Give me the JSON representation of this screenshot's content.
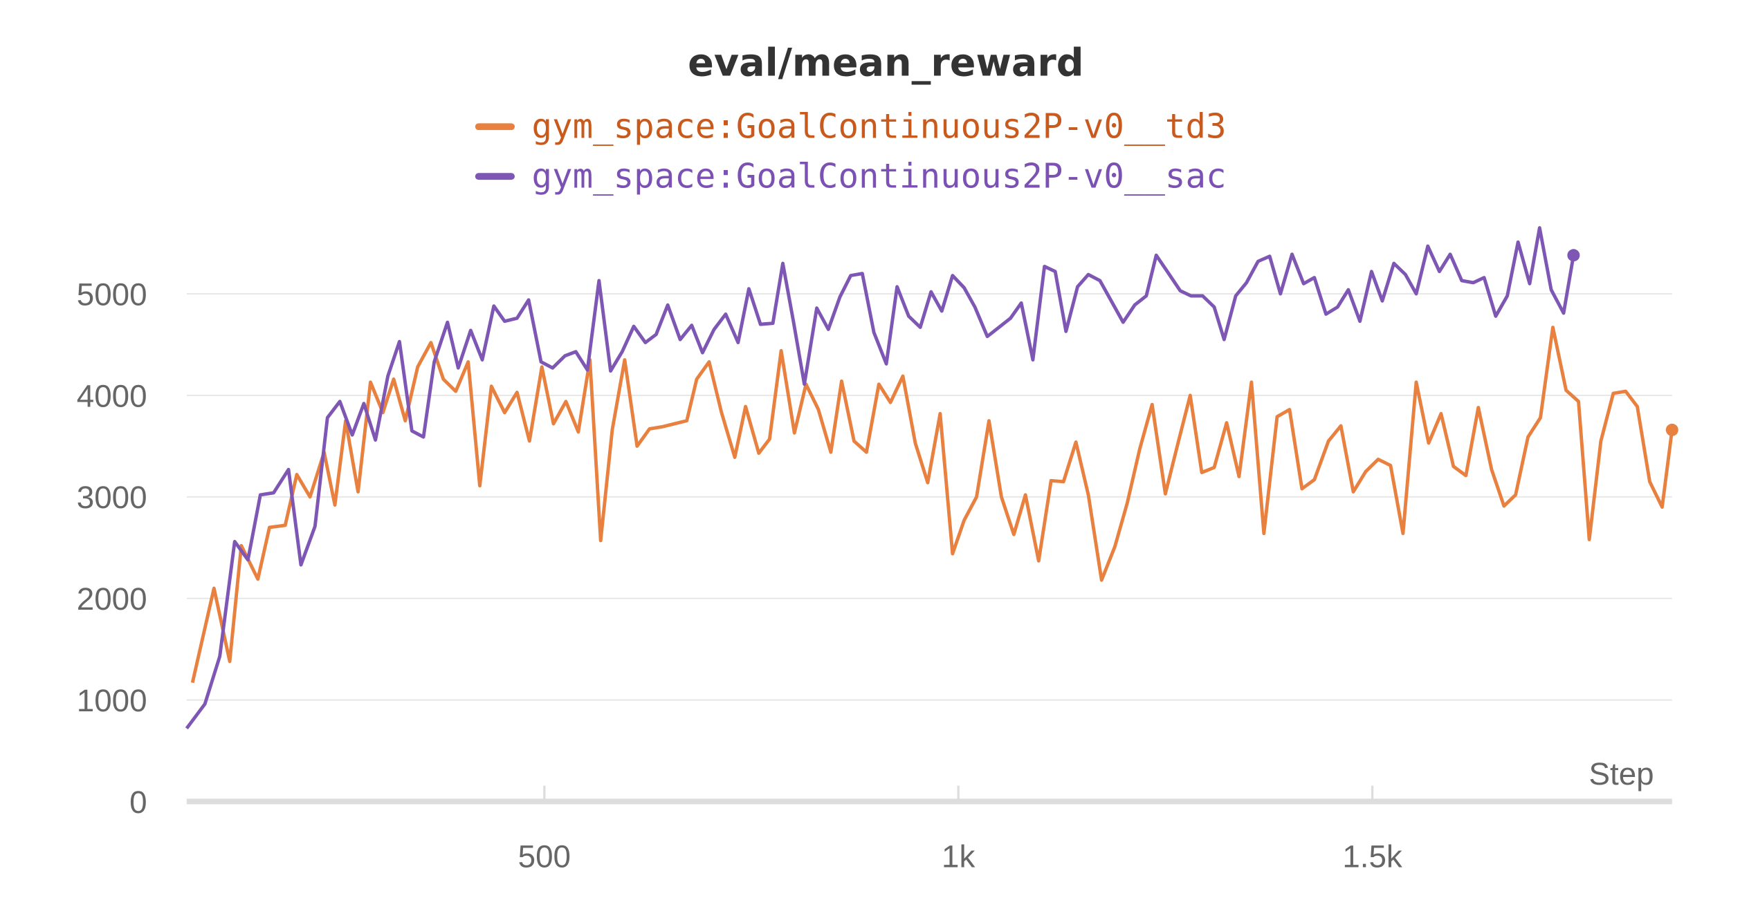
{
  "chart_data": {
    "type": "line",
    "title": "eval/mean_reward",
    "x_label": "Step",
    "xlim": [
      68,
      1862
    ],
    "ylim": [
      0,
      5700
    ],
    "xticks": [
      500,
      {
        "value": 1000,
        "label": "1k"
      },
      {
        "value": 1500,
        "label": "1.5k"
      }
    ],
    "yticks": [
      0,
      1000,
      2000,
      3000,
      4000,
      5000
    ],
    "grid": true,
    "series": [
      {
        "name": "gym_space:GoalContinuous2P-v0__td3",
        "color": "#e8803f",
        "x": [
          75,
          101,
          120,
          134,
          154,
          168,
          187,
          201,
          217,
          234,
          247,
          260,
          275,
          290,
          305,
          318,
          332,
          347,
          363,
          378,
          393,
          408,
          422,
          436,
          452,
          467,
          482,
          497,
          511,
          526,
          541,
          555,
          568,
          582,
          597,
          612,
          627,
          642,
          657,
          672,
          684,
          699,
          714,
          730,
          743,
          759,
          772,
          786,
          802,
          816,
          831,
          846,
          859,
          874,
          889,
          904,
          918,
          933,
          948,
          963,
          978,
          993,
          1007,
          1022,
          1037,
          1052,
          1067,
          1081,
          1097,
          1112,
          1127,
          1142,
          1157,
          1173,
          1189,
          1204,
          1219,
          1234,
          1250,
          1265,
          1280,
          1294,
          1309,
          1324,
          1339,
          1354,
          1369,
          1385,
          1400,
          1415,
          1430,
          1447,
          1462,
          1477,
          1492,
          1507,
          1522,
          1537,
          1553,
          1568,
          1583,
          1598,
          1613,
          1628,
          1644,
          1659,
          1673,
          1688,
          1703,
          1718,
          1734,
          1749,
          1762,
          1776,
          1791,
          1806,
          1820,
          1835,
          1850,
          1862
        ],
        "values": [
          1170,
          2100,
          1380,
          2520,
          2190,
          2700,
          2720,
          3220,
          3000,
          3440,
          2920,
          3750,
          3050,
          4130,
          3830,
          4160,
          3750,
          4280,
          4520,
          4160,
          4040,
          4330,
          3110,
          4090,
          3830,
          4030,
          3550,
          4280,
          3720,
          3940,
          3640,
          4350,
          2570,
          3660,
          4350,
          3500,
          3670,
          3690,
          3720,
          3750,
          4160,
          4330,
          3830,
          3390,
          3890,
          3430,
          3570,
          4440,
          3630,
          4110,
          3860,
          3440,
          4140,
          3550,
          3440,
          4110,
          3930,
          4190,
          3530,
          3140,
          3820,
          2440,
          2770,
          3000,
          3750,
          3000,
          2630,
          3020,
          2370,
          3160,
          3150,
          3540,
          3020,
          2180,
          2510,
          2940,
          3470,
          3910,
          3030,
          3520,
          4000,
          3240,
          3290,
          3730,
          3200,
          4130,
          2640,
          3790,
          3860,
          3080,
          3170,
          3550,
          3700,
          3050,
          3250,
          3370,
          3310,
          2640,
          4130,
          3530,
          3820,
          3300,
          3210,
          3880,
          3270,
          2910,
          3020,
          3590,
          3780,
          4670,
          4050,
          3940,
          2580,
          3550,
          4020,
          4040,
          3890,
          3150,
          2900,
          3660
        ]
      },
      {
        "name": "gym_space:GoalContinuous2P-v0__sac",
        "color": "#7e57b4",
        "x": [
          68,
          90,
          108,
          126,
          142,
          157,
          173,
          191,
          206,
          223,
          238,
          253,
          268,
          282,
          296,
          311,
          325,
          340,
          354,
          367,
          383,
          396,
          411,
          425,
          439,
          452,
          467,
          481,
          496,
          510,
          525,
          538,
          552,
          566,
          580,
          594,
          608,
          622,
          635,
          649,
          664,
          678,
          691,
          705,
          719,
          734,
          747,
          761,
          776,
          788,
          801,
          814,
          829,
          843,
          857,
          870,
          884,
          898,
          913,
          926,
          940,
          954,
          967,
          980,
          993,
          1007,
          1020,
          1035,
          1049,
          1063,
          1076,
          1090,
          1104,
          1117,
          1130,
          1144,
          1157,
          1171,
          1184,
          1199,
          1213,
          1227,
          1239,
          1254,
          1268,
          1281,
          1295,
          1309,
          1321,
          1335,
          1348,
          1362,
          1376,
          1389,
          1403,
          1417,
          1430,
          1444,
          1458,
          1471,
          1485,
          1499,
          1512,
          1526,
          1540,
          1553,
          1567,
          1581,
          1594,
          1608,
          1622,
          1635,
          1649,
          1663,
          1676,
          1690,
          1702,
          1716,
          1731,
          1743
        ],
        "values": [
          720,
          960,
          1430,
          2560,
          2380,
          3020,
          3040,
          3270,
          2330,
          2710,
          3780,
          3940,
          3610,
          3920,
          3560,
          4190,
          4530,
          3650,
          3590,
          4330,
          4720,
          4270,
          4640,
          4350,
          4880,
          4730,
          4760,
          4940,
          4330,
          4270,
          4390,
          4430,
          4250,
          5130,
          4240,
          4430,
          4680,
          4520,
          4600,
          4890,
          4550,
          4690,
          4420,
          4650,
          4800,
          4520,
          5050,
          4700,
          4710,
          5300,
          4720,
          4110,
          4860,
          4650,
          4970,
          5180,
          5200,
          4620,
          4310,
          5070,
          4780,
          4670,
          5020,
          4830,
          5180,
          5060,
          4870,
          4580,
          4670,
          4760,
          4910,
          4350,
          5270,
          5220,
          4630,
          5070,
          5190,
          5130,
          4940,
          4720,
          4890,
          4980,
          5380,
          5200,
          5030,
          4980,
          4980,
          4870,
          4550,
          4980,
          5110,
          5320,
          5370,
          5000,
          5390,
          5100,
          5160,
          4800,
          4870,
          5040,
          4730,
          5220,
          4930,
          5300,
          5190,
          5000,
          5470,
          5220,
          5390,
          5130,
          5110,
          5160,
          4780,
          4980,
          5510,
          5100,
          5650,
          5040,
          4810,
          5380
        ]
      }
    ]
  }
}
